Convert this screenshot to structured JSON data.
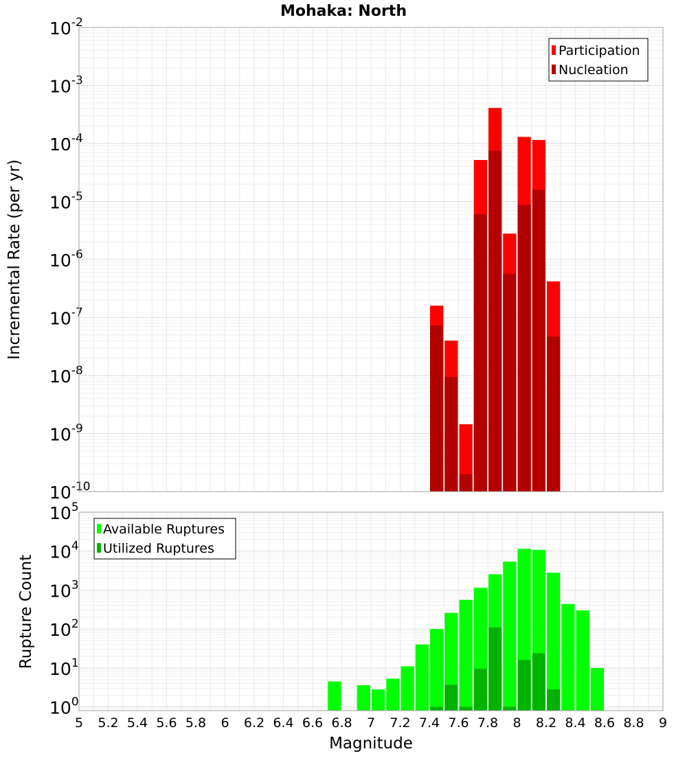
{
  "chart_data": [
    {
      "type": "bar",
      "title": "Mohaka: North",
      "xlabel": "Magnitude",
      "ylabel": "Incremental Rate (per yr)",
      "yscale": "log",
      "ylim": [
        1e-10,
        0.01
      ],
      "xlim": [
        5,
        9
      ],
      "grid": true,
      "legend_position": "top-right",
      "bar_width": 0.1,
      "y_ticks": [
        {
          "base": "10",
          "exp": "-2"
        },
        {
          "base": "10",
          "exp": "-3"
        },
        {
          "base": "10",
          "exp": "-4"
        },
        {
          "base": "10",
          "exp": "-5"
        },
        {
          "base": "10",
          "exp": "-6"
        },
        {
          "base": "10",
          "exp": "-7"
        },
        {
          "base": "10",
          "exp": "-8"
        },
        {
          "base": "10",
          "exp": "-9"
        },
        {
          "base": "10",
          "exp": "-10"
        }
      ],
      "series": [
        {
          "name": "Participation",
          "color": "#ff0000",
          "points": [
            {
              "x": 7.45,
              "y": 1.6e-07
            },
            {
              "x": 7.55,
              "y": 4e-08
            },
            {
              "x": 7.65,
              "y": 1.45e-09
            },
            {
              "x": 7.75,
              "y": 5.2e-05
            },
            {
              "x": 7.85,
              "y": 0.00041
            },
            {
              "x": 7.95,
              "y": 2.8e-06
            },
            {
              "x": 8.05,
              "y": 0.00013
            },
            {
              "x": 8.15,
              "y": 0.000115
            },
            {
              "x": 8.25,
              "y": 4.2e-07
            }
          ]
        },
        {
          "name": "Nucleation",
          "color": "#b30000",
          "points": [
            {
              "x": 7.45,
              "y": 7.3e-08
            },
            {
              "x": 7.55,
              "y": 9.5e-09
            },
            {
              "x": 7.65,
              "y": 2e-10
            },
            {
              "x": 7.75,
              "y": 6e-06
            },
            {
              "x": 7.85,
              "y": 7.5e-05
            },
            {
              "x": 7.95,
              "y": 5.7e-07
            },
            {
              "x": 8.05,
              "y": 8.8e-06
            },
            {
              "x": 8.15,
              "y": 1.6e-05
            },
            {
              "x": 8.25,
              "y": 4.7e-08
            }
          ]
        }
      ]
    },
    {
      "type": "bar",
      "xlabel": "Magnitude",
      "ylabel": "Rupture Count",
      "yscale": "log",
      "ylim": [
        0.8,
        100000.0
      ],
      "xlim": [
        5,
        9
      ],
      "grid": true,
      "legend_position": "top-left",
      "bar_width": 0.1,
      "y_ticks": [
        {
          "base": "10",
          "exp": "5"
        },
        {
          "base": "10",
          "exp": "4"
        },
        {
          "base": "10",
          "exp": "3"
        },
        {
          "base": "10",
          "exp": "2"
        },
        {
          "base": "10",
          "exp": "1"
        },
        {
          "base": "10",
          "exp": "0"
        }
      ],
      "x_ticks": [
        "5",
        "5.2",
        "5.4",
        "5.6",
        "5.8",
        "6",
        "6.2",
        "6.4",
        "6.6",
        "6.8",
        "7",
        "7.2",
        "7.4",
        "7.6",
        "7.8",
        "8",
        "8.2",
        "8.4",
        "8.6",
        "8.8",
        "9"
      ],
      "series": [
        {
          "name": "Available Ruptures",
          "color": "#00ff00",
          "points": [
            {
              "x": 6.75,
              "y": 4.5
            },
            {
              "x": 6.95,
              "y": 3.6
            },
            {
              "x": 7.05,
              "y": 2.8
            },
            {
              "x": 7.15,
              "y": 5.3
            },
            {
              "x": 7.25,
              "y": 11
            },
            {
              "x": 7.35,
              "y": 40
            },
            {
              "x": 7.45,
              "y": 100
            },
            {
              "x": 7.55,
              "y": 260
            },
            {
              "x": 7.65,
              "y": 560
            },
            {
              "x": 7.75,
              "y": 1150
            },
            {
              "x": 7.85,
              "y": 2550
            },
            {
              "x": 7.95,
              "y": 5400
            },
            {
              "x": 8.05,
              "y": 11500
            },
            {
              "x": 8.15,
              "y": 10800
            },
            {
              "x": 8.25,
              "y": 2800
            },
            {
              "x": 8.35,
              "y": 440
            },
            {
              "x": 8.45,
              "y": 300
            },
            {
              "x": 8.55,
              "y": 10
            }
          ]
        },
        {
          "name": "Utilized Ruptures",
          "color": "#00b300",
          "points": [
            {
              "x": 7.45,
              "y": 1
            },
            {
              "x": 7.55,
              "y": 3.7
            },
            {
              "x": 7.65,
              "y": 1
            },
            {
              "x": 7.75,
              "y": 9.5
            },
            {
              "x": 7.85,
              "y": 110
            },
            {
              "x": 7.95,
              "y": 1
            },
            {
              "x": 8.05,
              "y": 16
            },
            {
              "x": 8.15,
              "y": 24
            },
            {
              "x": 8.25,
              "y": 2.8
            }
          ]
        }
      ]
    }
  ]
}
